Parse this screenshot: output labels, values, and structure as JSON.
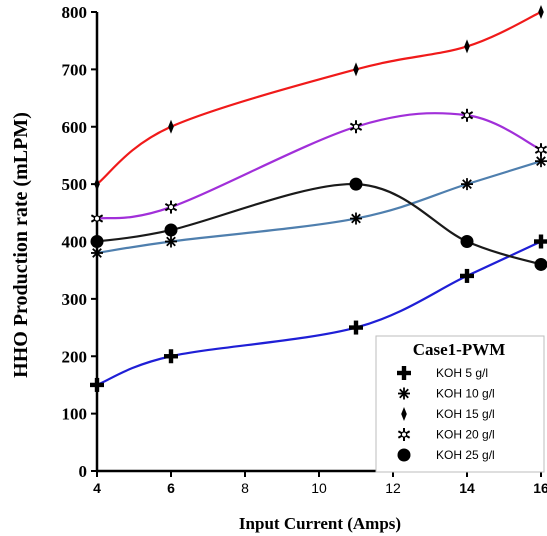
{
  "chart_data": {
    "type": "line",
    "xlabel": "Input Current (Amps)",
    "ylabel": "HHO Production rate (mLPM)",
    "xlim": [
      4,
      16
    ],
    "ylim": [
      0,
      800
    ],
    "x_ticks": [
      4,
      6,
      8,
      10,
      12,
      14,
      16
    ],
    "y_ticks": [
      0,
      100,
      200,
      300,
      400,
      500,
      600,
      700,
      800
    ],
    "grid": false,
    "legend": {
      "title": "Case1-PWM",
      "placement": "bottom-right"
    },
    "series": [
      {
        "name": "KOH 5 g/l",
        "color": "#1f1fd6",
        "marker": "plus",
        "x": [
          4,
          6,
          11,
          14,
          16
        ],
        "values": [
          150,
          200,
          250,
          340,
          400
        ]
      },
      {
        "name": "KOH 10 g/l",
        "color": "#4f7fae",
        "marker": "asterisk",
        "x": [
          4,
          6,
          11,
          14,
          16
        ],
        "values": [
          380,
          400,
          440,
          500,
          540
        ]
      },
      {
        "name": "KOH 15 g/l",
        "color": "#f01a1a",
        "marker": "diamond",
        "x": [
          4,
          6,
          11,
          14,
          16
        ],
        "values": [
          500,
          600,
          700,
          740,
          800
        ]
      },
      {
        "name": "KOH 20 g/l",
        "color": "#a12fd9",
        "marker": "star",
        "x": [
          4,
          6,
          11,
          14,
          16
        ],
        "values": [
          440,
          460,
          600,
          620,
          560
        ]
      },
      {
        "name": "KOH 25 g/l",
        "color": "#1a1a1a",
        "marker": "circle",
        "x": [
          4,
          6,
          11,
          14,
          16
        ],
        "values": [
          400,
          420,
          500,
          400,
          360
        ]
      }
    ]
  }
}
